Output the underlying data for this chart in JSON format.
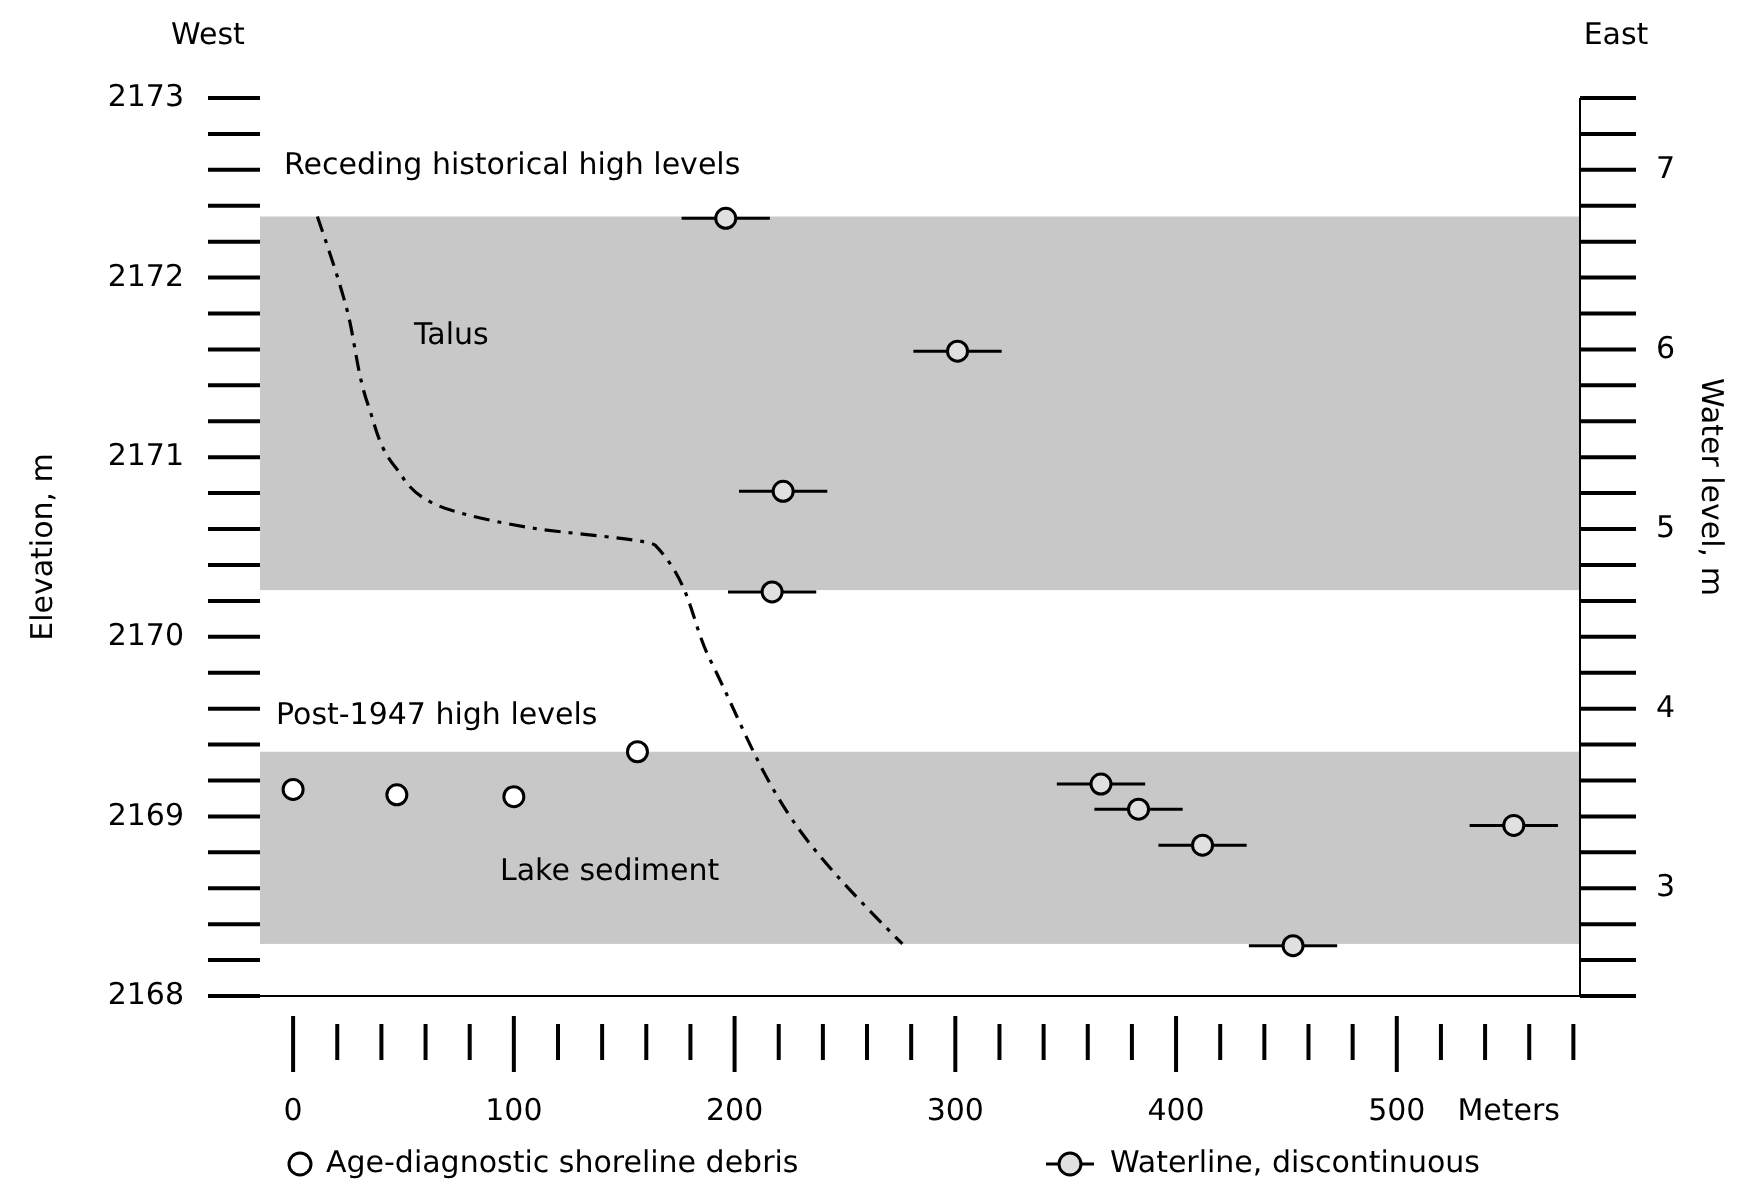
{
  "chart_data": {
    "type": "scatter",
    "ylabel": "Elevation, m",
    "y2label": "Water level, m",
    "xlabel": "Meters",
    "xlim": [
      -15,
      583
    ],
    "xticks": [
      0,
      100,
      200,
      300,
      400,
      500
    ],
    "ylim": [
      2168,
      2173
    ],
    "yticks": [
      2168,
      2169,
      2170,
      2171,
      2172,
      2173
    ],
    "y2lim": [
      2.4,
      7.4
    ],
    "y2ticks": [
      3,
      4,
      5,
      6,
      7
    ],
    "bands": [
      {
        "axis": "y",
        "from": 2170.26,
        "to": 2172.34,
        "color": "#c8c8c8"
      },
      {
        "axis": "y",
        "from": 2168.29,
        "to": 2169.36,
        "color": "#c8c8c8"
      }
    ],
    "annotations": [
      "West",
      "East",
      "Receding historical high levels",
      "Post-1947 high levels",
      "Talus",
      "Lake sediment"
    ],
    "legend": "bottom",
    "series": [
      {
        "type": "line",
        "color": "#000000",
        "line_style": "dashed",
        "x": [
          11,
          24,
          34,
          46,
          64,
          106,
          164,
          189,
          234,
          276
        ],
        "values": [
          2172.34,
          2171.84,
          2171.29,
          2170.95,
          2170.74,
          2170.61,
          2170.51,
          2169.87,
          2168.85,
          2168.29
        ]
      },
      {
        "name": "Age-diagnostic shoreline debris",
        "color": "#ffffff",
        "marker": "circle",
        "x": [
          0,
          47,
          100,
          156
        ],
        "values": [
          2169.15,
          2169.12,
          2169.11,
          2169.36
        ]
      },
      {
        "name": "Waterline, discontinuous",
        "color": "#e0e0e0",
        "marker": "circle",
        "x": [
          196,
          301,
          222,
          217,
          366,
          383,
          412,
          453,
          553
        ],
        "values": [
          2172.33,
          2171.59,
          2170.81,
          2170.25,
          2169.18,
          2169.04,
          2168.84,
          2168.28,
          2168.95
        ],
        "xerrors": [
          20,
          20,
          20,
          20,
          20,
          20,
          20,
          20,
          20
        ]
      }
    ]
  }
}
